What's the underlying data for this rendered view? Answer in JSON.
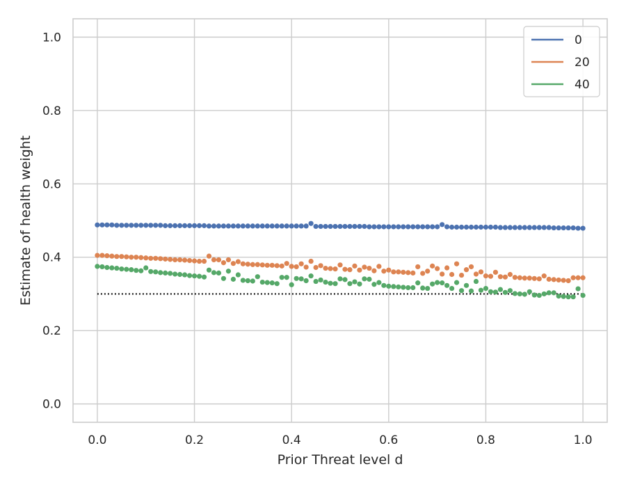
{
  "chart_data": {
    "type": "scatter",
    "title": "",
    "xlabel": "Prior Threat level d",
    "ylabel": "Estimate of health weight",
    "xlim": [
      -0.05,
      1.05
    ],
    "ylim": [
      -0.05,
      1.05
    ],
    "xticks": [
      0.0,
      0.2,
      0.4,
      0.6,
      0.8,
      1.0
    ],
    "yticks": [
      0.0,
      0.2,
      0.4,
      0.6,
      0.8,
      1.0
    ],
    "xtick_labels": [
      "0.0",
      "0.2",
      "0.4",
      "0.6",
      "0.8",
      "1.0"
    ],
    "ytick_labels": [
      "0.0",
      "0.2",
      "0.4",
      "0.6",
      "0.8",
      "1.0"
    ],
    "grid": true,
    "legend_position": "top-right",
    "reference_line": {
      "y": 0.3,
      "x_range": [
        0.0,
        1.0
      ],
      "style": "dotted",
      "color": "#000000"
    },
    "series": [
      {
        "name": "0",
        "color": "#4c72b0",
        "x": [
          0.0,
          0.01,
          0.02,
          0.03,
          0.04,
          0.05,
          0.06,
          0.07,
          0.08,
          0.09,
          0.1,
          0.11,
          0.12,
          0.13,
          0.14,
          0.15,
          0.16,
          0.17,
          0.18,
          0.19,
          0.2,
          0.21,
          0.22,
          0.23,
          0.24,
          0.25,
          0.26,
          0.27,
          0.28,
          0.29,
          0.3,
          0.31,
          0.32,
          0.33,
          0.34,
          0.35,
          0.36,
          0.37,
          0.38,
          0.39,
          0.4,
          0.41,
          0.42,
          0.43,
          0.44,
          0.45,
          0.46,
          0.47,
          0.48,
          0.49,
          0.5,
          0.51,
          0.52,
          0.53,
          0.54,
          0.55,
          0.56,
          0.57,
          0.58,
          0.59,
          0.6,
          0.61,
          0.62,
          0.63,
          0.64,
          0.65,
          0.66,
          0.67,
          0.68,
          0.69,
          0.7,
          0.71,
          0.72,
          0.73,
          0.74,
          0.75,
          0.76,
          0.77,
          0.78,
          0.79,
          0.8,
          0.81,
          0.82,
          0.83,
          0.84,
          0.85,
          0.86,
          0.87,
          0.88,
          0.89,
          0.9,
          0.91,
          0.92,
          0.93,
          0.94,
          0.95,
          0.96,
          0.97,
          0.98,
          0.99,
          1.0
        ],
        "y": [
          0.488,
          0.488,
          0.488,
          0.488,
          0.487,
          0.487,
          0.487,
          0.487,
          0.487,
          0.487,
          0.487,
          0.487,
          0.487,
          0.487,
          0.486,
          0.486,
          0.486,
          0.486,
          0.486,
          0.486,
          0.486,
          0.486,
          0.486,
          0.485,
          0.485,
          0.485,
          0.485,
          0.485,
          0.485,
          0.485,
          0.485,
          0.485,
          0.485,
          0.485,
          0.485,
          0.485,
          0.485,
          0.485,
          0.485,
          0.485,
          0.485,
          0.485,
          0.485,
          0.485,
          0.492,
          0.484,
          0.484,
          0.484,
          0.484,
          0.484,
          0.484,
          0.484,
          0.484,
          0.484,
          0.484,
          0.484,
          0.483,
          0.483,
          0.483,
          0.483,
          0.483,
          0.483,
          0.483,
          0.483,
          0.483,
          0.483,
          0.483,
          0.483,
          0.483,
          0.483,
          0.483,
          0.489,
          0.483,
          0.482,
          0.482,
          0.482,
          0.482,
          0.482,
          0.482,
          0.482,
          0.482,
          0.482,
          0.482,
          0.481,
          0.481,
          0.481,
          0.481,
          0.481,
          0.481,
          0.481,
          0.481,
          0.481,
          0.481,
          0.481,
          0.48,
          0.48,
          0.48,
          0.48,
          0.48,
          0.479,
          0.479
        ]
      },
      {
        "name": "20",
        "color": "#dd8452",
        "x": [
          0.0,
          0.01,
          0.02,
          0.03,
          0.04,
          0.05,
          0.06,
          0.07,
          0.08,
          0.09,
          0.1,
          0.11,
          0.12,
          0.13,
          0.14,
          0.15,
          0.16,
          0.17,
          0.18,
          0.19,
          0.2,
          0.21,
          0.22,
          0.23,
          0.24,
          0.25,
          0.26,
          0.27,
          0.28,
          0.29,
          0.3,
          0.31,
          0.32,
          0.33,
          0.34,
          0.35,
          0.36,
          0.37,
          0.38,
          0.39,
          0.4,
          0.41,
          0.42,
          0.43,
          0.44,
          0.45,
          0.46,
          0.47,
          0.48,
          0.49,
          0.5,
          0.51,
          0.52,
          0.53,
          0.54,
          0.55,
          0.56,
          0.57,
          0.58,
          0.59,
          0.6,
          0.61,
          0.62,
          0.63,
          0.64,
          0.65,
          0.66,
          0.67,
          0.68,
          0.69,
          0.7,
          0.71,
          0.72,
          0.73,
          0.74,
          0.75,
          0.76,
          0.77,
          0.78,
          0.79,
          0.8,
          0.81,
          0.82,
          0.83,
          0.84,
          0.85,
          0.86,
          0.87,
          0.88,
          0.89,
          0.9,
          0.91,
          0.92,
          0.93,
          0.94,
          0.95,
          0.96,
          0.97,
          0.98,
          0.99,
          1.0
        ],
        "y": [
          0.405,
          0.405,
          0.404,
          0.403,
          0.402,
          0.402,
          0.401,
          0.4,
          0.4,
          0.399,
          0.398,
          0.397,
          0.397,
          0.396,
          0.395,
          0.394,
          0.393,
          0.393,
          0.392,
          0.391,
          0.39,
          0.389,
          0.389,
          0.403,
          0.393,
          0.393,
          0.385,
          0.393,
          0.383,
          0.388,
          0.382,
          0.381,
          0.38,
          0.38,
          0.379,
          0.378,
          0.378,
          0.377,
          0.376,
          0.383,
          0.375,
          0.374,
          0.382,
          0.373,
          0.389,
          0.372,
          0.377,
          0.37,
          0.369,
          0.368,
          0.379,
          0.367,
          0.366,
          0.376,
          0.365,
          0.373,
          0.37,
          0.363,
          0.375,
          0.362,
          0.365,
          0.36,
          0.36,
          0.359,
          0.358,
          0.357,
          0.374,
          0.356,
          0.362,
          0.376,
          0.369,
          0.354,
          0.371,
          0.353,
          0.382,
          0.351,
          0.366,
          0.374,
          0.354,
          0.36,
          0.349,
          0.348,
          0.359,
          0.347,
          0.346,
          0.353,
          0.345,
          0.344,
          0.343,
          0.343,
          0.342,
          0.341,
          0.349,
          0.34,
          0.339,
          0.338,
          0.337,
          0.336,
          0.344,
          0.344,
          0.344
        ]
      },
      {
        "name": "40",
        "color": "#55a868",
        "x": [
          0.0,
          0.01,
          0.02,
          0.03,
          0.04,
          0.05,
          0.06,
          0.07,
          0.08,
          0.09,
          0.1,
          0.11,
          0.12,
          0.13,
          0.14,
          0.15,
          0.16,
          0.17,
          0.18,
          0.19,
          0.2,
          0.21,
          0.22,
          0.23,
          0.24,
          0.25,
          0.26,
          0.27,
          0.28,
          0.29,
          0.3,
          0.31,
          0.32,
          0.33,
          0.34,
          0.35,
          0.36,
          0.37,
          0.38,
          0.39,
          0.4,
          0.41,
          0.42,
          0.43,
          0.44,
          0.45,
          0.46,
          0.47,
          0.48,
          0.49,
          0.5,
          0.51,
          0.52,
          0.53,
          0.54,
          0.55,
          0.56,
          0.57,
          0.58,
          0.59,
          0.6,
          0.61,
          0.62,
          0.63,
          0.64,
          0.65,
          0.66,
          0.67,
          0.68,
          0.69,
          0.7,
          0.71,
          0.72,
          0.73,
          0.74,
          0.75,
          0.76,
          0.77,
          0.78,
          0.79,
          0.8,
          0.81,
          0.82,
          0.83,
          0.84,
          0.85,
          0.86,
          0.87,
          0.88,
          0.89,
          0.9,
          0.91,
          0.92,
          0.93,
          0.94,
          0.95,
          0.96,
          0.97,
          0.98,
          0.99,
          1.0
        ],
        "y": [
          0.375,
          0.374,
          0.372,
          0.371,
          0.37,
          0.368,
          0.367,
          0.366,
          0.364,
          0.363,
          0.371,
          0.361,
          0.36,
          0.358,
          0.357,
          0.356,
          0.354,
          0.353,
          0.352,
          0.35,
          0.349,
          0.348,
          0.346,
          0.365,
          0.358,
          0.357,
          0.342,
          0.362,
          0.34,
          0.352,
          0.337,
          0.336,
          0.335,
          0.347,
          0.332,
          0.331,
          0.33,
          0.328,
          0.345,
          0.345,
          0.325,
          0.342,
          0.341,
          0.336,
          0.349,
          0.334,
          0.338,
          0.332,
          0.329,
          0.328,
          0.341,
          0.339,
          0.328,
          0.333,
          0.327,
          0.341,
          0.34,
          0.326,
          0.331,
          0.323,
          0.321,
          0.32,
          0.319,
          0.318,
          0.317,
          0.317,
          0.33,
          0.316,
          0.315,
          0.327,
          0.331,
          0.33,
          0.323,
          0.315,
          0.331,
          0.309,
          0.323,
          0.308,
          0.334,
          0.31,
          0.315,
          0.306,
          0.305,
          0.312,
          0.304,
          0.309,
          0.301,
          0.3,
          0.299,
          0.306,
          0.297,
          0.296,
          0.3,
          0.303,
          0.303,
          0.294,
          0.293,
          0.292,
          0.292,
          0.314,
          0.296
        ]
      }
    ]
  }
}
